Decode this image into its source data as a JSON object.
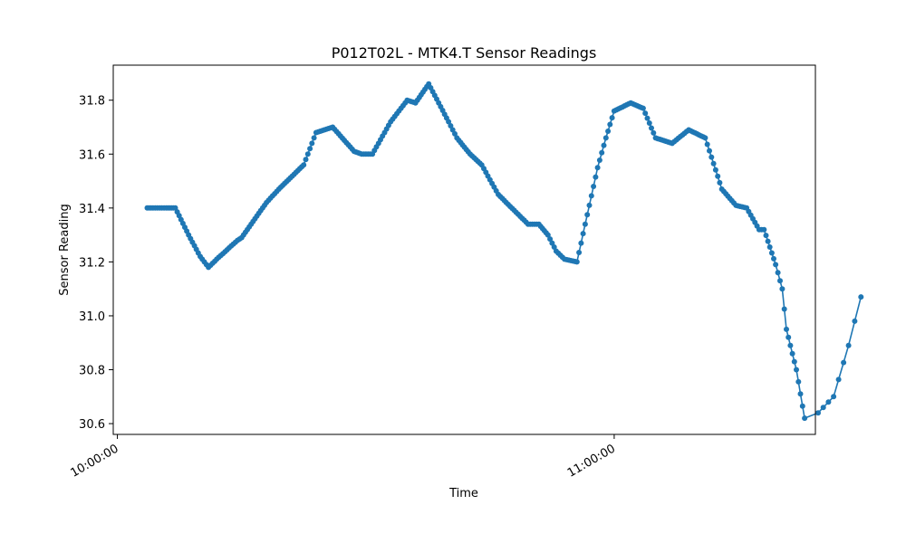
{
  "chart_data": {
    "type": "line",
    "title": "P012T02L - MTK4.T Sensor Readings",
    "xlabel": "Time",
    "ylabel": "Sensor Reading",
    "x_tick_labels": [
      "10:00:00",
      "11:00:00"
    ],
    "x_ticks_minutes": [
      0,
      60
    ],
    "y_ticks": [
      30.6,
      30.8,
      31.0,
      31.2,
      31.4,
      31.6,
      31.8
    ],
    "y_tick_labels": [
      "30.6",
      "30.8",
      "31.0",
      "31.2",
      "31.4",
      "31.6",
      "31.8"
    ],
    "xlim_minutes": [
      -0.5,
      84.3
    ],
    "ylim": [
      30.56,
      31.93
    ],
    "grid": false,
    "color": "#1f77b4",
    "series": [
      {
        "x_minutes": [
          3.6,
          4.3,
          5.1,
          5.9,
          7.0,
          8.6,
          10.0,
          11.0,
          12.0,
          14.5,
          15.0,
          18.0,
          19.5,
          22.5,
          24.0,
          26.0,
          28.6,
          29.5,
          30.8,
          33.0,
          35.0,
          36.0,
          37.6,
          40.0,
          41.0,
          42.6,
          44.0,
          46.0,
          49.6,
          50.9,
          52.0,
          53.0,
          54.0,
          55.5,
          58.0,
          59.0,
          60.0,
          62.0,
          63.5,
          65.0,
          67.0,
          69.0,
          71.0,
          73.0,
          74.7,
          76.0,
          77.5,
          78.1,
          79.5,
          80.3,
          80.8,
          82.0,
          83.0
        ],
        "y": [
          31.4,
          31.4,
          31.4,
          31.4,
          31.4,
          31.3,
          31.22,
          31.18,
          31.21,
          31.28,
          31.29,
          31.42,
          31.47,
          31.56,
          31.68,
          31.7,
          31.61,
          31.6,
          31.6,
          31.72,
          31.8,
          31.79,
          31.86,
          31.72,
          31.66,
          31.6,
          31.56,
          31.45,
          31.34,
          31.34,
          31.3,
          31.24,
          31.21,
          31.2,
          31.55,
          31.66,
          31.76,
          31.79,
          31.77,
          31.66,
          31.64,
          31.69,
          31.66,
          31.47,
          31.41,
          31.4,
          31.32,
          31.32,
          31.19,
          31.1,
          30.95,
          30.8,
          30.62
        ],
        "tail_x_minutes": [
          84.0,
          86.5,
          88.3,
          89.8
        ],
        "tail_y": [
          30.62,
          30.7,
          30.89,
          31.07
        ]
      }
    ]
  }
}
